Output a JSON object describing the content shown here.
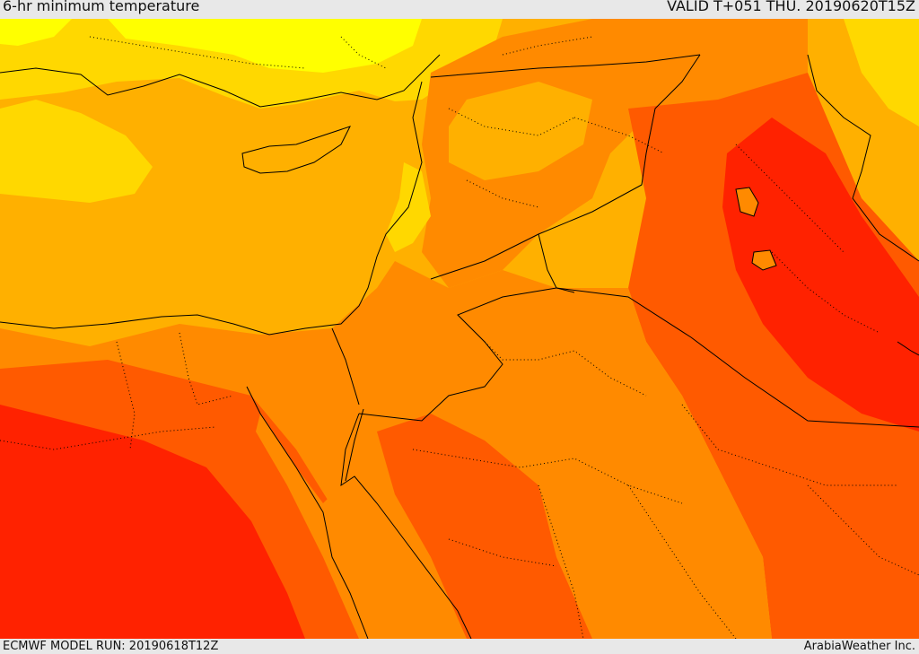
{
  "header": {
    "title": "6-hr minimum temperature",
    "valid": "VALID T+051 THU. 20190620T15Z"
  },
  "footer": {
    "model_run": "ECMWF MODEL RUN: 20190618T12Z",
    "credit": "ArabiaWeather Inc."
  },
  "map": {
    "field": "6-hr minimum temperature",
    "colors": {
      "light_yellow": "#ffff00",
      "yellow": "#ffd800",
      "yellow_orange": "#ffb000",
      "orange": "#ff8a00",
      "red_orange": "#ff5a00",
      "red": "#ff2200",
      "border": "#000000"
    },
    "features": [
      "coastlines",
      "country-borders",
      "province-borders"
    ]
  }
}
